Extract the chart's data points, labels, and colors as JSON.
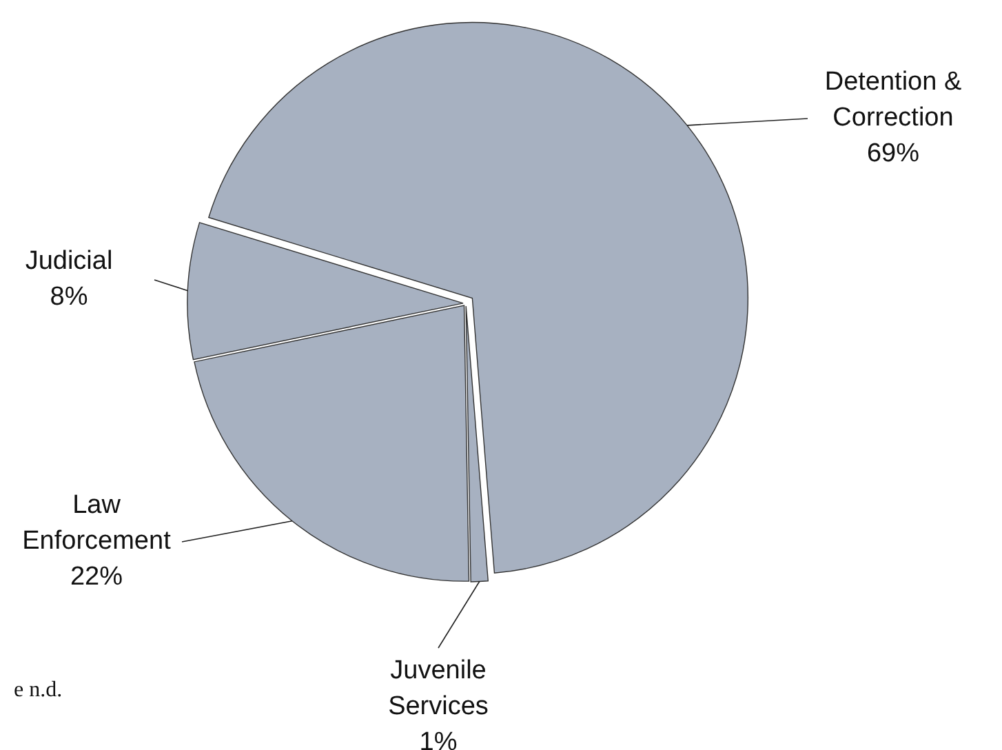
{
  "chart_data": {
    "type": "pie",
    "categories": [
      "Detention & Correction",
      "Juvenile Services",
      "Law Enforcement",
      "Judicial"
    ],
    "values": [
      69,
      1,
      22,
      8
    ],
    "value_labels": [
      "69%",
      "1%",
      "22%",
      "8%"
    ],
    "colors": [
      "#a7b1c1",
      "#a7b1c1",
      "#a7b1c1",
      "#a7b1c1"
    ],
    "annotations": [
      "e n.d."
    ]
  }
}
